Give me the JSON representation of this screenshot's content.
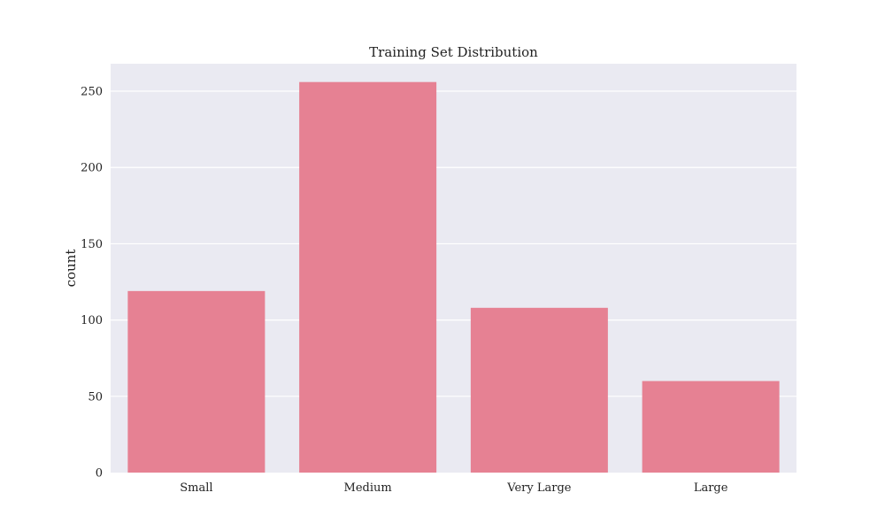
{
  "chart_data": {
    "type": "bar",
    "title": "Training Set Distribution",
    "xlabel": "",
    "ylabel": "count",
    "categories": [
      "Small",
      "Medium",
      "Very Large",
      "Large"
    ],
    "values": [
      119,
      256,
      108,
      60
    ],
    "ylim": [
      0,
      268
    ],
    "yticks": [
      0,
      50,
      100,
      150,
      200,
      250
    ],
    "grid": true,
    "legend": "none",
    "colors": {
      "bar": "#e68193",
      "plot_background": "#eaeaf2",
      "grid": "#ffffff",
      "text": "#222222"
    }
  }
}
